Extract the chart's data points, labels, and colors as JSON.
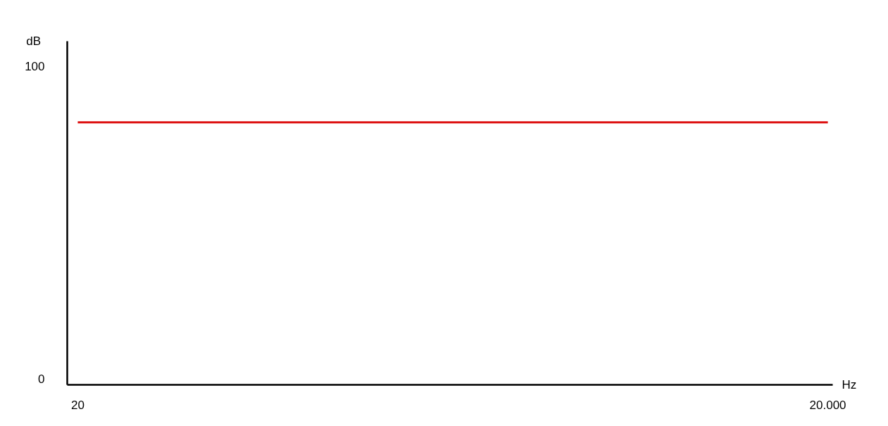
{
  "chart_data": {
    "type": "line",
    "xlabel": "Hz",
    "ylabel": "dB",
    "x": [
      20,
      20000
    ],
    "series": [
      {
        "color": "#dd1111",
        "values": [
          82,
          82
        ]
      }
    ],
    "xlim": [
      -260,
      20130
    ],
    "ylim": [
      -2,
      108
    ],
    "xticks": [
      20,
      {
        "value": 20000,
        "label": "20.000"
      }
    ],
    "yticks": [
      0,
      100
    ],
    "line_style": "solid"
  }
}
